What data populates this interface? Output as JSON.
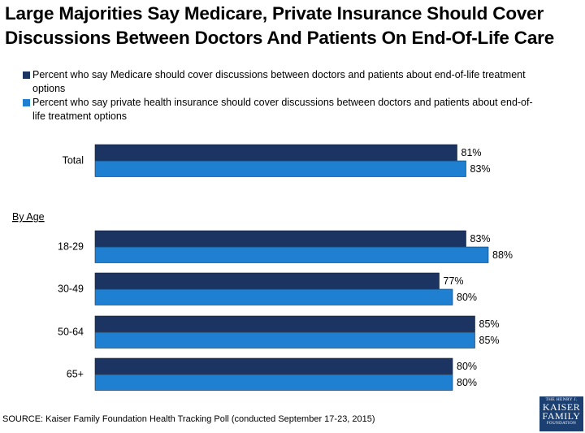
{
  "title_line1": "Large Majorities Say Medicare, Private Insurance Should Cover",
  "title_line2": "Discussions Between Doctors And Patients On End-Of-Life Care",
  "source": "SOURCE: Kaiser Family Foundation Health Tracking Poll (conducted September 17-23, 2015)",
  "logo": {
    "line1": "THE HENRY J.",
    "line2": "KAISER",
    "line3": "FAMILY",
    "line4": "FOUNDATION"
  },
  "colors": {
    "medicare": "#1c3461",
    "private": "#1f7fd0"
  },
  "chart_data": {
    "type": "bar",
    "orientation": "horizontal",
    "section_label": "By Age",
    "categories": [
      "Total",
      "18-29",
      "30-49",
      "50-64",
      "65+"
    ],
    "series": [
      {
        "name": "Percent who say Medicare should cover discussions between doctors and patients about end-of-life treatment options",
        "values": [
          81,
          83,
          77,
          85,
          80
        ],
        "labels": [
          "81%",
          "83%",
          "77%",
          "85%",
          "80%"
        ]
      },
      {
        "name": "Percent who say private health insurance should cover discussions between doctors and patients about end-of-life treatment options",
        "values": [
          83,
          88,
          80,
          85,
          80
        ],
        "labels": [
          "83%",
          "88%",
          "80%",
          "85%",
          "80%"
        ]
      }
    ],
    "xlim": [
      0,
      100
    ],
    "grid": false,
    "legend_position": "top"
  }
}
